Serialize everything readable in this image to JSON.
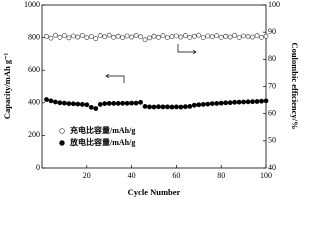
{
  "chart_data": {
    "type": "scatter",
    "xlabel": "Cycle Number",
    "ylabel": "Capacity/mAh g⁻¹",
    "y2label": "Coulombic efficiency/%",
    "x": [
      2,
      4,
      6,
      8,
      10,
      12,
      14,
      16,
      18,
      20,
      22,
      24,
      26,
      28,
      30,
      32,
      34,
      36,
      38,
      40,
      42,
      44,
      46,
      48,
      50,
      52,
      54,
      56,
      58,
      60,
      62,
      64,
      66,
      68,
      70,
      72,
      74,
      76,
      78,
      80,
      82,
      84,
      86,
      88,
      90,
      92,
      94,
      96,
      98,
      100
    ],
    "series": [
      {
        "name": "充电比容量/mAh/g",
        "color": "#333333",
        "marker": "open",
        "axis": "y2",
        "values": [
          88.5,
          87.8,
          88.9,
          88.1,
          88.7,
          87.9,
          88.6,
          88.2,
          88.8,
          88.0,
          88.4,
          87.6,
          88.7,
          88.3,
          88.9,
          88.1,
          88.5,
          88.0,
          88.6,
          88.2,
          88.8,
          88.3,
          87.2,
          87.9,
          88.5,
          88.1,
          88.7,
          88.0,
          88.4,
          88.6,
          88.2,
          88.8,
          88.1,
          88.5,
          88.9,
          88.0,
          88.6,
          88.3,
          88.7,
          88.1,
          88.5,
          88.2,
          88.8,
          88.0,
          88.6,
          88.4,
          88.2,
          88.7,
          88.1,
          88.5
        ]
      },
      {
        "name": "放电比容量/mAh/g",
        "color": "#000000",
        "marker": "filled",
        "values": [
          420,
          412,
          405,
          400,
          398,
          395,
          394,
          392,
          390,
          388,
          372,
          365,
          390,
          395,
          396,
          396,
          396,
          397,
          397,
          398,
          398,
          403,
          378,
          375,
          374,
          376,
          375,
          375,
          374,
          375,
          374,
          376,
          378,
          385,
          388,
          390,
          392,
          395,
          396,
          398,
          400,
          401,
          403,
          404,
          405,
          406,
          407,
          408,
          410,
          412
        ]
      }
    ],
    "xlim": [
      0,
      100
    ],
    "xticks": [
      20,
      40,
      60,
      80,
      100
    ],
    "ylim": [
      0,
      1000
    ],
    "yticks": [
      0,
      200,
      400,
      600,
      800,
      1000
    ],
    "y2lim": [
      40,
      100
    ],
    "y2ticks": [
      40,
      50,
      60,
      70,
      80,
      90,
      100
    ]
  }
}
